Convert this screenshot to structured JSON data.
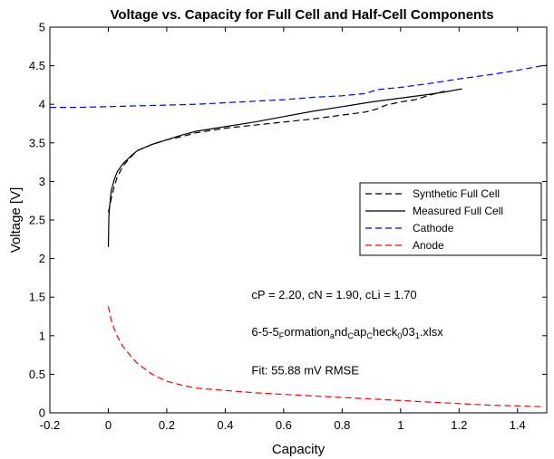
{
  "chart_data": {
    "type": "line",
    "title": "Voltage vs. Capacity for Full Cell and Half-Cell Components",
    "xlabel": "Capacity",
    "ylabel": "Voltage [V]",
    "xlim": [
      -0.2,
      1.5
    ],
    "ylim": [
      0,
      5
    ],
    "xticks": [
      -0.2,
      0,
      0.2,
      0.4,
      0.6,
      0.8,
      1,
      1.2,
      1.4
    ],
    "xtick_labels": [
      "-0.2",
      "0",
      "0.2",
      "0.4",
      "0.6",
      "0.8",
      "1",
      "1.2",
      "1.4"
    ],
    "yticks": [
      0,
      0.5,
      1,
      1.5,
      2,
      2.5,
      3,
      3.5,
      4,
      4.5,
      5
    ],
    "ytick_labels": [
      "0",
      "0.5",
      "1",
      "1.5",
      "2",
      "2.5",
      "3",
      "3.5",
      "4",
      "4.5",
      "5"
    ],
    "grid": false,
    "legend_position": "right",
    "annotations": [
      {
        "text": "cP = 2.20, cN = 1.90, cLi = 1.70",
        "x": 0.49,
        "y": 1.48
      },
      {
        "text": "6-5-5",
        "x": 0.49,
        "y": 1.0,
        "parts": [
          {
            "t": "6-5-5",
            "sub": false
          },
          {
            "t": "F",
            "sub": true
          },
          {
            "t": "ormation",
            "sub": false
          },
          {
            "t": "a",
            "sub": true
          },
          {
            "t": "nd",
            "sub": false
          },
          {
            "t": "C",
            "sub": true
          },
          {
            "t": "ap",
            "sub": false
          },
          {
            "t": "C",
            "sub": true
          },
          {
            "t": "heck",
            "sub": false
          },
          {
            "t": "0",
            "sub": true
          },
          {
            "t": "03",
            "sub": false
          },
          {
            "t": "1",
            "sub": true
          },
          {
            "t": ".xlsx",
            "sub": false
          }
        ]
      },
      {
        "text": "Fit: 55.88 mV RMSE",
        "x": 0.49,
        "y": 0.5
      }
    ],
    "series": [
      {
        "name": "Synthetic Full Cell",
        "color": "#000000",
        "dash": "dashed",
        "x": [
          0.0,
          0.005,
          0.01,
          0.02,
          0.03,
          0.05,
          0.08,
          0.1,
          0.15,
          0.2,
          0.25,
          0.3,
          0.4,
          0.5,
          0.6,
          0.7,
          0.8,
          0.88,
          0.92,
          0.95,
          1.0,
          1.05,
          1.1,
          1.15
        ],
        "y": [
          2.6,
          2.68,
          2.78,
          2.93,
          3.05,
          3.2,
          3.33,
          3.4,
          3.48,
          3.54,
          3.58,
          3.63,
          3.69,
          3.73,
          3.77,
          3.81,
          3.86,
          3.9,
          3.94,
          3.99,
          4.03,
          4.06,
          4.12,
          4.17
        ]
      },
      {
        "name": "Measured Full Cell",
        "color": "#000000",
        "dash": "solid",
        "x": [
          0.0,
          0.002,
          0.005,
          0.01,
          0.02,
          0.03,
          0.05,
          0.08,
          0.1,
          0.15,
          0.2,
          0.25,
          0.3,
          0.4,
          0.5,
          0.6,
          0.7,
          0.8,
          0.9,
          1.0,
          1.1,
          1.15,
          1.21
        ],
        "y": [
          2.15,
          2.55,
          2.7,
          2.88,
          3.02,
          3.12,
          3.23,
          3.34,
          3.4,
          3.48,
          3.54,
          3.6,
          3.65,
          3.71,
          3.77,
          3.84,
          3.91,
          3.97,
          4.03,
          4.08,
          4.13,
          4.16,
          4.2
        ]
      },
      {
        "name": "Cathode",
        "color": "#0000ff",
        "dash": "dashed",
        "x": [
          -0.2,
          -0.1,
          0.0,
          0.1,
          0.2,
          0.3,
          0.4,
          0.5,
          0.6,
          0.7,
          0.8,
          0.88,
          0.92,
          1.0,
          1.1,
          1.2,
          1.3,
          1.4,
          1.5
        ],
        "y": [
          3.96,
          3.96,
          3.97,
          3.98,
          3.99,
          4.0,
          4.02,
          4.04,
          4.06,
          4.09,
          4.11,
          4.14,
          4.19,
          4.22,
          4.27,
          4.33,
          4.38,
          4.44,
          4.51
        ]
      },
      {
        "name": "Anode",
        "color": "#ff0000",
        "dash": "dashed",
        "x": [
          0.0,
          0.01,
          0.02,
          0.03,
          0.05,
          0.08,
          0.1,
          0.15,
          0.2,
          0.25,
          0.3,
          0.4,
          0.5,
          0.6,
          0.7,
          0.8,
          0.9,
          1.0,
          1.1,
          1.2,
          1.3,
          1.4,
          1.48
        ],
        "y": [
          1.38,
          1.2,
          1.09,
          1.0,
          0.86,
          0.72,
          0.64,
          0.5,
          0.41,
          0.36,
          0.32,
          0.29,
          0.26,
          0.24,
          0.22,
          0.2,
          0.18,
          0.16,
          0.14,
          0.12,
          0.1,
          0.09,
          0.08
        ]
      }
    ]
  }
}
